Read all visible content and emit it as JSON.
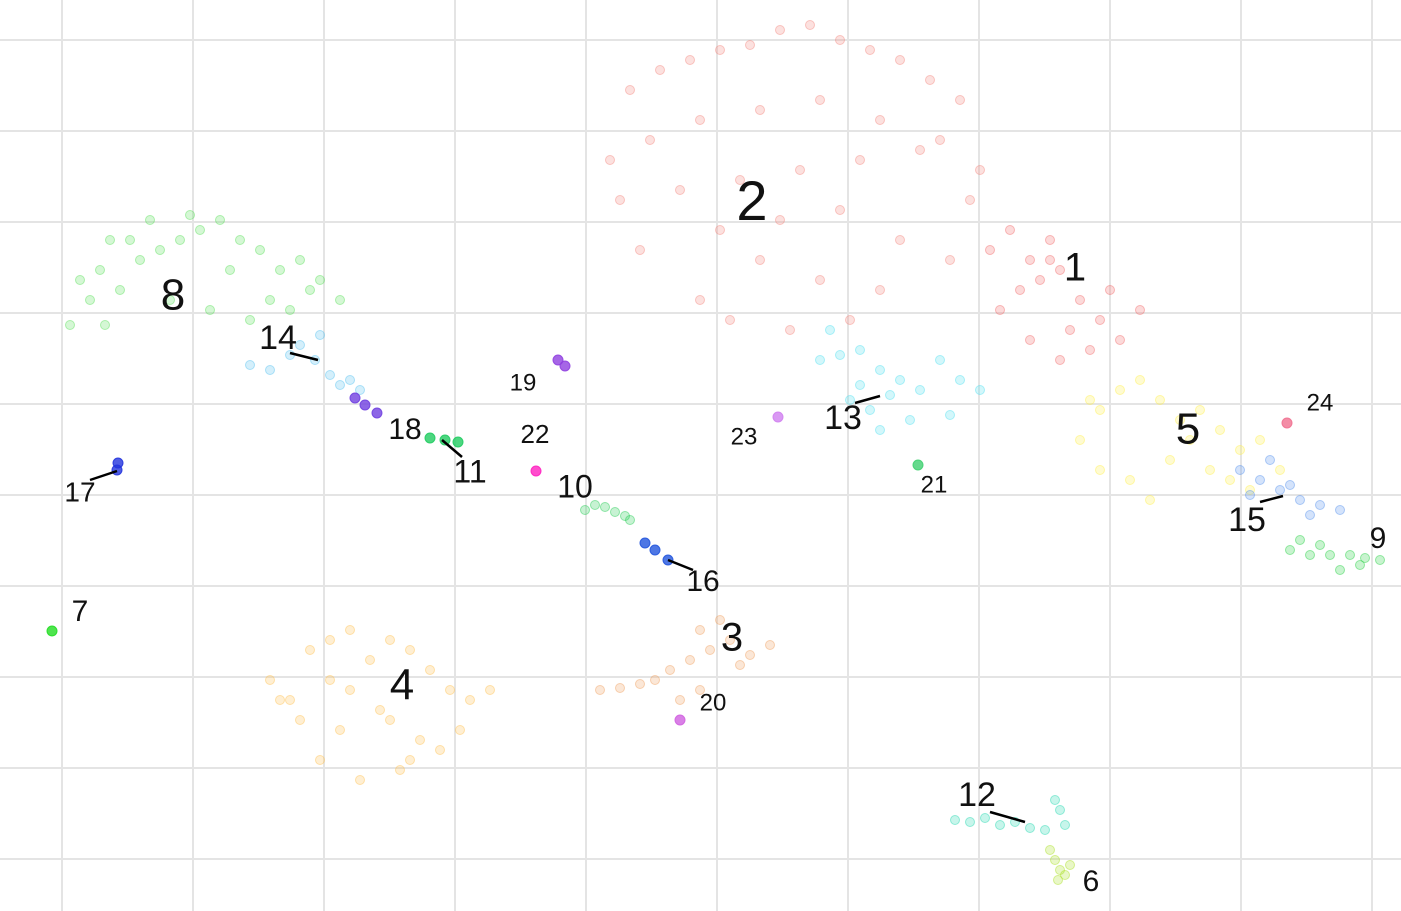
{
  "chart_data": {
    "type": "scatter",
    "xlim": [
      0,
      1401
    ],
    "ylim": [
      911,
      0
    ],
    "xticks": [
      62,
      193,
      324,
      455,
      586,
      717,
      848,
      979,
      1110,
      1241,
      1372
    ],
    "yticks": [
      40,
      131,
      222,
      313,
      404,
      495,
      586,
      677,
      768,
      859
    ],
    "grid": true,
    "series": [
      {
        "name": "1",
        "color": "#f26b6b",
        "x": [
          990,
          1010,
          1030,
          1050,
          1040,
          1060,
          1080,
          1020,
          1000,
          1070,
          1100,
          1090,
          1120,
          1060,
          1030,
          1110,
          1140,
          1050
        ],
        "y": [
          250,
          230,
          260,
          240,
          280,
          270,
          300,
          290,
          310,
          330,
          320,
          350,
          340,
          360,
          340,
          290,
          310,
          260
        ]
      },
      {
        "name": "2",
        "color": "#f4877f",
        "x": [
          630,
          660,
          690,
          720,
          750,
          780,
          810,
          840,
          870,
          900,
          930,
          960,
          610,
          650,
          700,
          760,
          820,
          880,
          940,
          980,
          620,
          680,
          740,
          800,
          860,
          920,
          970,
          720,
          780,
          840,
          900,
          760,
          820,
          700,
          880,
          640,
          950,
          790,
          850,
          730
        ],
        "y": [
          90,
          70,
          60,
          50,
          45,
          30,
          25,
          40,
          50,
          60,
          80,
          100,
          160,
          140,
          120,
          110,
          100,
          120,
          140,
          170,
          200,
          190,
          180,
          170,
          160,
          150,
          200,
          230,
          220,
          210,
          240,
          260,
          280,
          300,
          290,
          250,
          260,
          330,
          320,
          320
        ]
      },
      {
        "name": "3",
        "color": "#f0a060",
        "x": [
          600,
          620,
          640,
          655,
          670,
          690,
          700,
          710,
          730,
          750,
          770,
          680,
          720,
          740,
          700
        ],
        "y": [
          690,
          688,
          684,
          680,
          670,
          660,
          630,
          650,
          640,
          655,
          645,
          700,
          620,
          665,
          690
        ]
      },
      {
        "name": "4",
        "color": "#ffc050",
        "x": [
          270,
          290,
          310,
          330,
          350,
          370,
          390,
          410,
          430,
          450,
          470,
          490,
          300,
          340,
          380,
          420,
          460,
          320,
          360,
          400,
          440,
          280,
          350,
          410,
          330,
          390
        ],
        "y": [
          680,
          700,
          650,
          640,
          630,
          660,
          640,
          650,
          670,
          690,
          700,
          690,
          720,
          730,
          710,
          740,
          730,
          760,
          780,
          770,
          750,
          700,
          690,
          760,
          680,
          720
        ]
      },
      {
        "name": "5",
        "color": "#fff04a",
        "x": [
          1080,
          1100,
          1120,
          1140,
          1160,
          1180,
          1200,
          1220,
          1240,
          1260,
          1280,
          1100,
          1130,
          1170,
          1210,
          1250,
          1150,
          1190,
          1090,
          1230
        ],
        "y": [
          440,
          410,
          390,
          380,
          400,
          420,
          410,
          430,
          450,
          440,
          470,
          470,
          480,
          460,
          470,
          490,
          500,
          440,
          400,
          480
        ]
      },
      {
        "name": "6",
        "color": "#a8e020",
        "x": [
          1050,
          1055,
          1060,
          1065,
          1070,
          1058
        ],
        "y": [
          850,
          860,
          870,
          875,
          865,
          880
        ]
      },
      {
        "name": "7",
        "color": "#22dd22",
        "x": [
          52
        ],
        "y": [
          631
        ]
      },
      {
        "name": "8",
        "color": "#58e058",
        "x": [
          80,
          100,
          120,
          140,
          160,
          180,
          200,
          220,
          240,
          260,
          280,
          300,
          320,
          340,
          90,
          110,
          130,
          170,
          210,
          250,
          290,
          150,
          230,
          270,
          310,
          105,
          70,
          190
        ],
        "y": [
          280,
          270,
          290,
          260,
          250,
          240,
          230,
          220,
          240,
          250,
          270,
          260,
          280,
          300,
          300,
          240,
          240,
          300,
          310,
          320,
          310,
          220,
          270,
          300,
          290,
          325,
          325,
          215
        ]
      },
      {
        "name": "9",
        "color": "#22d040",
        "x": [
          1290,
          1310,
          1330,
          1350,
          1365,
          1380,
          1300,
          1340,
          1320,
          1360
        ],
        "y": [
          550,
          555,
          555,
          555,
          558,
          560,
          540,
          570,
          545,
          565
        ]
      },
      {
        "name": "10",
        "color": "#20cc50",
        "x": [
          585,
          595,
          605,
          615,
          625,
          630
        ],
        "y": [
          510,
          505,
          507,
          512,
          516,
          520
        ]
      },
      {
        "name": "11",
        "color": "#20cc60",
        "x": [
          430,
          445,
          458
        ],
        "y": [
          438,
          440,
          442
        ]
      },
      {
        "name": "12",
        "color": "#20d8b0",
        "x": [
          955,
          970,
          985,
          1000,
          1015,
          1030,
          1045,
          1060,
          1055,
          1065
        ],
        "y": [
          820,
          822,
          818,
          825,
          822,
          828,
          830,
          810,
          800,
          825
        ]
      },
      {
        "name": "13",
        "color": "#50e0f0",
        "x": [
          820,
          840,
          860,
          880,
          900,
          920,
          940,
          960,
          980,
          850,
          870,
          890,
          910,
          860,
          830,
          950,
          880
        ],
        "y": [
          360,
          355,
          350,
          370,
          380,
          390,
          360,
          380,
          390,
          400,
          410,
          395,
          420,
          385,
          330,
          415,
          430
        ]
      },
      {
        "name": "14",
        "color": "#55c0f0",
        "x": [
          250,
          270,
          290,
          300,
          315,
          330,
          340,
          350,
          360,
          320
        ],
        "y": [
          365,
          370,
          355,
          345,
          360,
          375,
          385,
          380,
          390,
          335
        ]
      },
      {
        "name": "15",
        "color": "#5590ee",
        "x": [
          1240,
          1260,
          1280,
          1300,
          1320,
          1340,
          1270,
          1310,
          1250,
          1290
        ],
        "y": [
          470,
          480,
          490,
          500,
          505,
          510,
          460,
          515,
          495,
          485
        ]
      },
      {
        "name": "16",
        "color": "#2255dd",
        "x": [
          645,
          655,
          668
        ],
        "y": [
          543,
          550,
          560
        ]
      },
      {
        "name": "17",
        "color": "#2233dd",
        "x": [
          117,
          118
        ],
        "y": [
          470,
          463
        ]
      },
      {
        "name": "18",
        "color": "#7040e0",
        "x": [
          355,
          365,
          377
        ],
        "y": [
          398,
          405,
          413
        ]
      },
      {
        "name": "19",
        "color": "#9040e0",
        "x": [
          558,
          565
        ],
        "y": [
          360,
          366
        ]
      },
      {
        "name": "20",
        "color": "#d060e0",
        "x": [
          680
        ],
        "y": [
          720
        ]
      },
      {
        "name": "21",
        "color": "#40d070",
        "x": [
          918
        ],
        "y": [
          465
        ]
      },
      {
        "name": "22",
        "color": "#ff20c0",
        "x": [
          536
        ],
        "y": [
          471
        ]
      },
      {
        "name": "23",
        "color": "#d080f0",
        "x": [
          778
        ],
        "y": [
          417
        ]
      },
      {
        "name": "24",
        "color": "#f07090",
        "x": [
          1287
        ],
        "y": [
          423
        ]
      }
    ]
  }
}
